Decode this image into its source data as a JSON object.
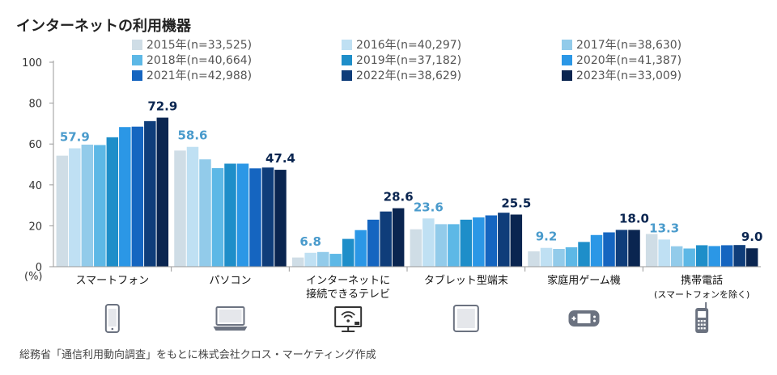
{
  "chart_data": {
    "type": "bar",
    "title": "インターネットの利用機器",
    "ylabel": "(%)",
    "ylim": [
      0,
      100
    ],
    "yticks": [
      0,
      20,
      40,
      60,
      80,
      100
    ],
    "grid": false,
    "legend_position": "top-right",
    "categories": [
      {
        "label": "スマートフォン",
        "sublabel": "",
        "icon": "smartphone-icon"
      },
      {
        "label": "パソコン",
        "sublabel": "",
        "icon": "laptop-icon"
      },
      {
        "label": "インターネットに",
        "sublabel": "接続できるテレビ",
        "icon": "smart-tv-icon"
      },
      {
        "label": "タブレット型端末",
        "sublabel": "",
        "icon": "tablet-icon"
      },
      {
        "label": "家庭用ゲーム機",
        "sublabel": "",
        "icon": "game-console-icon"
      },
      {
        "label": "携帯電話",
        "sublabel": "(スマートフォンを除く)",
        "icon": "feature-phone-icon"
      }
    ],
    "series": [
      {
        "name": "2015年(n=33,525)",
        "color": "#cfdde6",
        "values": [
          54.3,
          56.8,
          4.5,
          18.3,
          7.5,
          16.0
        ]
      },
      {
        "name": "2016年(n=40,297)",
        "color": "#bfe0f3",
        "values": [
          57.9,
          58.6,
          6.8,
          23.6,
          9.2,
          13.3
        ]
      },
      {
        "name": "2017年(n=38,630)",
        "color": "#92cbea",
        "values": [
          59.7,
          52.5,
          7.2,
          20.8,
          8.7,
          10.0
        ]
      },
      {
        "name": "2018年(n=40,664)",
        "color": "#5db8e6",
        "values": [
          59.5,
          48.2,
          6.3,
          20.8,
          9.5,
          8.9
        ]
      },
      {
        "name": "2019年(n=37,182)",
        "color": "#1e8ec9",
        "values": [
          63.3,
          50.4,
          13.6,
          23.0,
          12.1,
          10.5
        ]
      },
      {
        "name": "2020年(n=41,387)",
        "color": "#2b97e6",
        "values": [
          68.3,
          50.4,
          17.9,
          24.1,
          15.5,
          10.1
        ]
      },
      {
        "name": "2021年(n=42,988)",
        "color": "#1565c0",
        "values": [
          68.5,
          48.1,
          23.0,
          25.1,
          16.8,
          10.5
        ]
      },
      {
        "name": "2022年(n=38,629)",
        "color": "#0f3d7a",
        "values": [
          71.2,
          48.5,
          27.0,
          26.4,
          18.0,
          10.6
        ]
      },
      {
        "name": "2023年(n=33,009)",
        "color": "#0a2550",
        "values": [
          72.9,
          47.4,
          28.6,
          25.5,
          18.0,
          9.0
        ]
      }
    ],
    "data_labels": [
      {
        "category": 0,
        "series": 1,
        "text": "57.9",
        "color": "#4a9bcc"
      },
      {
        "category": 0,
        "series": 8,
        "text": "72.9",
        "color": "#0a2550"
      },
      {
        "category": 1,
        "series": 1,
        "text": "58.6",
        "color": "#4a9bcc"
      },
      {
        "category": 1,
        "series": 8,
        "text": "47.4",
        "color": "#0a2550"
      },
      {
        "category": 2,
        "series": 1,
        "text": "6.8",
        "color": "#4a9bcc"
      },
      {
        "category": 2,
        "series": 8,
        "text": "28.6",
        "color": "#0a2550"
      },
      {
        "category": 3,
        "series": 1,
        "text": "23.6",
        "color": "#4a9bcc"
      },
      {
        "category": 3,
        "series": 8,
        "text": "25.5",
        "color": "#0a2550"
      },
      {
        "category": 4,
        "series": 1,
        "text": "9.2",
        "color": "#4a9bcc"
      },
      {
        "category": 4,
        "series": 8,
        "text": "18.0",
        "color": "#0a2550"
      },
      {
        "category": 5,
        "series": 1,
        "text": "13.3",
        "color": "#4a9bcc"
      },
      {
        "category": 5,
        "series": 8,
        "text": "9.0",
        "color": "#0a2550"
      }
    ],
    "source": "総務省「通信利用動向調査」をもとに株式会社クロス・マーケティング作成"
  }
}
